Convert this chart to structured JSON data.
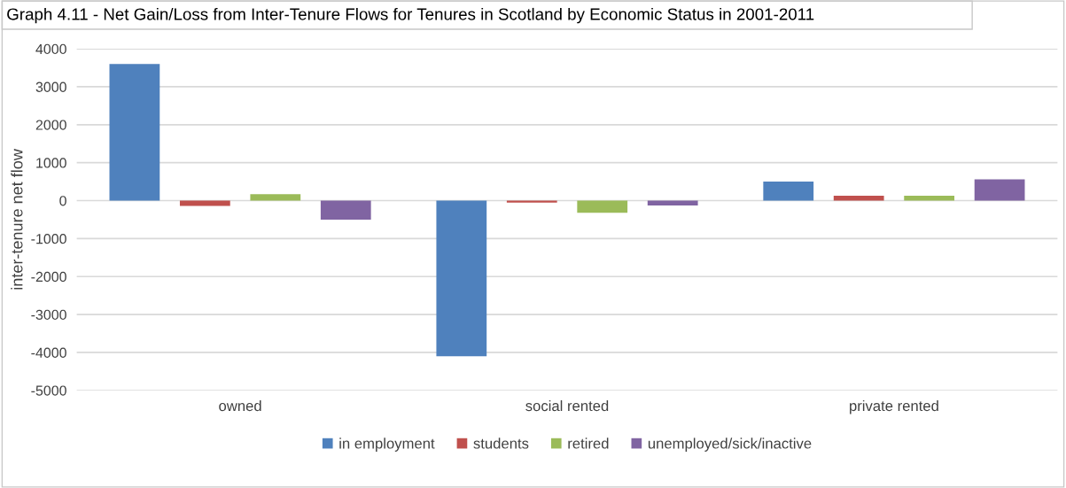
{
  "chart_data": {
    "type": "bar",
    "title": "Graph 4.11 - Net Gain/Loss from Inter-Tenure Flows for Tenures in Scotland by Economic Status in 2001-2011",
    "ylabel": "inter-tenure net flow",
    "categories": [
      "owned",
      "social rented",
      "private rented"
    ],
    "series": [
      {
        "name": "in employment",
        "color": "#4f81bd",
        "values": [
          3600,
          -4100,
          500
        ]
      },
      {
        "name": "students",
        "color": "#c0504d",
        "values": [
          -140,
          -50,
          130
        ]
      },
      {
        "name": "retired",
        "color": "#9bbb59",
        "values": [
          170,
          -320,
          130
        ]
      },
      {
        "name": "unemployed/sick/inactive",
        "color": "#8064a2",
        "values": [
          -500,
          -130,
          560
        ]
      }
    ],
    "ylim": [
      -5000,
      4000
    ],
    "yticks": [
      -5000,
      -4000,
      -3000,
      -2000,
      -1000,
      0,
      1000,
      2000,
      3000,
      4000
    ],
    "grid": "y",
    "legend": "bottom"
  }
}
